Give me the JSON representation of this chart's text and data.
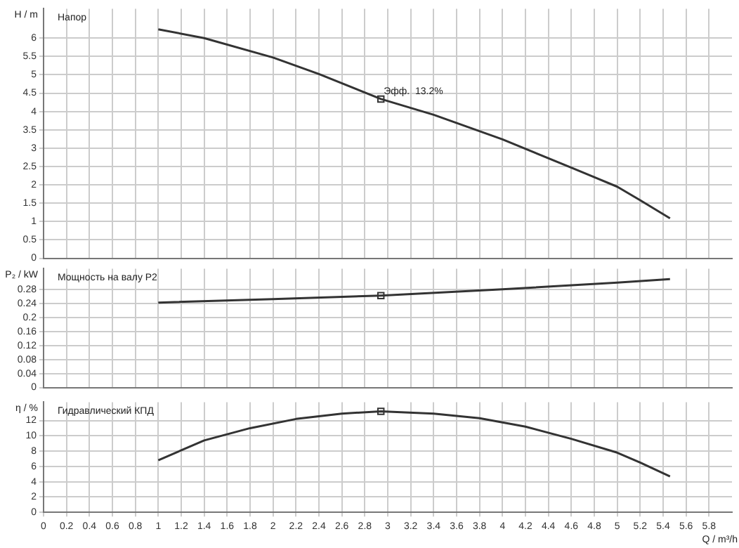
{
  "chart_data": [
    {
      "type": "line",
      "title": "Напор",
      "ylabel": "H / m",
      "xlim": [
        0,
        6
      ],
      "ylim": [
        0,
        6.8
      ],
      "yticks": [
        0,
        0.5,
        1,
        1.5,
        2,
        2.5,
        3,
        3.5,
        4,
        4.5,
        5,
        5.5,
        6
      ],
      "xticks": [
        0,
        0.2,
        0.4,
        0.6,
        0.8,
        1,
        1.2,
        1.4,
        1.6,
        1.8,
        2,
        2.2,
        2.4,
        2.6,
        2.8,
        3,
        3.2,
        3.4,
        3.6,
        3.8,
        4,
        4.2,
        4.4,
        4.6,
        4.8,
        5,
        5.2,
        5.4,
        5.6,
        5.8
      ],
      "grid": true,
      "tick_labels": "y",
      "marker": "none",
      "line_style": "solid",
      "series": [
        {
          "type": "line",
          "color": "#333333",
          "x": [
            1,
            1.4,
            2,
            2.4,
            2.94,
            3.4,
            4,
            4.6,
            5,
            5.2,
            5.46
          ],
          "values": [
            6.24,
            6.0,
            5.47,
            5.02,
            4.34,
            3.91,
            3.24,
            2.47,
            1.95,
            1.58,
            1.09
          ]
        },
        {
          "type": "scatter",
          "color": "#333333",
          "marker": "square",
          "x": [
            2.94
          ],
          "values": [
            4.34
          ]
        }
      ],
      "annotations": [
        {
          "text": "Эфф.  13.2%",
          "x": 2.94,
          "y": 4.34
        }
      ]
    },
    {
      "type": "line",
      "title": "Мощность на валу P2",
      "ylabel": "P₂ / kW",
      "xlim": [
        0,
        6
      ],
      "ylim": [
        0,
        0.34
      ],
      "yticks": [
        0,
        0.04,
        0.08,
        0.12,
        0.16,
        0.2,
        0.24,
        0.28
      ],
      "xticks": [
        0,
        0.2,
        0.4,
        0.6,
        0.8,
        1,
        1.2,
        1.4,
        1.6,
        1.8,
        2,
        2.2,
        2.4,
        2.6,
        2.8,
        3,
        3.2,
        3.4,
        3.6,
        3.8,
        4,
        4.2,
        4.4,
        4.6,
        4.8,
        5,
        5.2,
        5.4,
        5.6,
        5.8
      ],
      "grid": true,
      "tick_labels": "y",
      "marker": "none",
      "line_style": "solid",
      "series": [
        {
          "type": "line",
          "color": "#333333",
          "x": [
            1,
            2,
            2.94,
            4,
            5,
            5.46
          ],
          "values": [
            0.243,
            0.253,
            0.263,
            0.281,
            0.3,
            0.31
          ]
        },
        {
          "type": "scatter",
          "color": "#333333",
          "marker": "square",
          "x": [
            2.94
          ],
          "values": [
            0.263
          ]
        }
      ]
    },
    {
      "type": "line",
      "title": "Гидравлический КПД",
      "ylabel": "η / %",
      "xlabel": "Q / m³/h",
      "xlim": [
        0,
        6
      ],
      "ylim": [
        0,
        14.4
      ],
      "yticks": [
        0,
        2,
        4,
        6,
        8,
        10,
        12
      ],
      "xticks": [
        0,
        0.2,
        0.4,
        0.6,
        0.8,
        1,
        1.2,
        1.4,
        1.6,
        1.8,
        2,
        2.2,
        2.4,
        2.6,
        2.8,
        3,
        3.2,
        3.4,
        3.6,
        3.8,
        4,
        4.2,
        4.4,
        4.6,
        4.8,
        5,
        5.2,
        5.4,
        5.6,
        5.8
      ],
      "grid": true,
      "marker": "none",
      "line_style": "solid",
      "series": [
        {
          "type": "line",
          "color": "#333333",
          "x": [
            1,
            1.4,
            1.8,
            2.2,
            2.6,
            2.94,
            3.4,
            3.8,
            4.2,
            4.6,
            5,
            5.2,
            5.46
          ],
          "values": [
            6.8,
            9.4,
            11.0,
            12.2,
            12.9,
            13.2,
            12.9,
            12.3,
            11.2,
            9.6,
            7.8,
            6.5,
            4.7
          ]
        },
        {
          "type": "scatter",
          "color": "#333333",
          "marker": "square",
          "x": [
            2.94
          ],
          "values": [
            13.2
          ]
        }
      ]
    }
  ]
}
